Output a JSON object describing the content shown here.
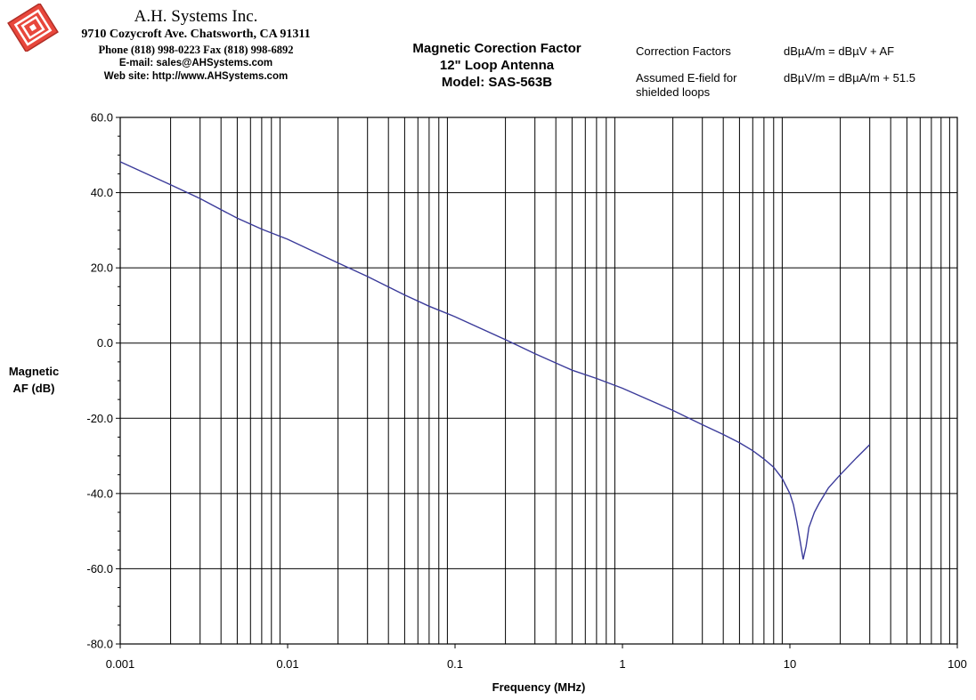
{
  "header": {
    "company_name": "A.H. Systems Inc.",
    "address": "9710 Cozycroft Ave. Chatsworth, CA 91311",
    "phone": "Phone (818) 998-0223 Fax (818) 998-6892",
    "email": "E-mail: sales@AHSystems.com",
    "website": "Web site: http://www.AHSystems.com",
    "logo_text": "A.H. Systems logo",
    "colors": {
      "logo": "#e8473c"
    }
  },
  "notes": [
    {
      "label": "Correction Factors",
      "equation": "dBµA/m = dBµV + AF"
    },
    {
      "label": "Assumed E-field for shielded loops",
      "equation": "dBµV/m = dBµA/m + 51.5"
    }
  ],
  "chart_data": {
    "type": "line",
    "title": "Magnetic Corection Factor",
    "subtitle_lines": [
      "12\" Loop Antenna",
      "Model: SAS-563B"
    ],
    "xlabel": "Frequency (MHz)",
    "ylabel": "Magnetic AF (dB)",
    "x_scale": "log",
    "xlim": [
      0.001,
      100
    ],
    "ylim": [
      -80,
      60
    ],
    "x_tick_labels": [
      "0.001",
      "0.01",
      "0.1",
      "1",
      "10",
      "100"
    ],
    "y_tick_labels": [
      "60.0",
      "40.0",
      "20.0",
      "0.0",
      "-20.0",
      "-40.0",
      "-60.0",
      "-80.0"
    ],
    "grid": true,
    "series": [
      {
        "color": "#3b3b9a",
        "x": [
          0.001,
          0.002,
          0.003,
          0.005,
          0.007,
          0.01,
          0.02,
          0.03,
          0.05,
          0.07,
          0.1,
          0.2,
          0.3,
          0.5,
          0.7,
          1,
          2,
          3,
          4,
          5,
          6,
          7,
          8,
          9,
          10,
          10.5,
          11,
          11.5,
          12,
          12.5,
          13,
          14,
          15,
          17,
          20,
          25,
          30
        ],
        "y": [
          48.2,
          42.1,
          38.4,
          33.2,
          30.3,
          27.6,
          21.3,
          17.7,
          12.8,
          9.8,
          7.0,
          0.9,
          -2.8,
          -7.2,
          -9.4,
          -12.0,
          -17.9,
          -21.7,
          -24.3,
          -26.5,
          -28.6,
          -30.8,
          -33.0,
          -36.0,
          -40.0,
          -43.0,
          -47.5,
          -52.5,
          -57.5,
          -54.0,
          -49.0,
          -45.0,
          -42.5,
          -38.5,
          -35.0,
          -30.5,
          -27.0
        ]
      }
    ]
  }
}
